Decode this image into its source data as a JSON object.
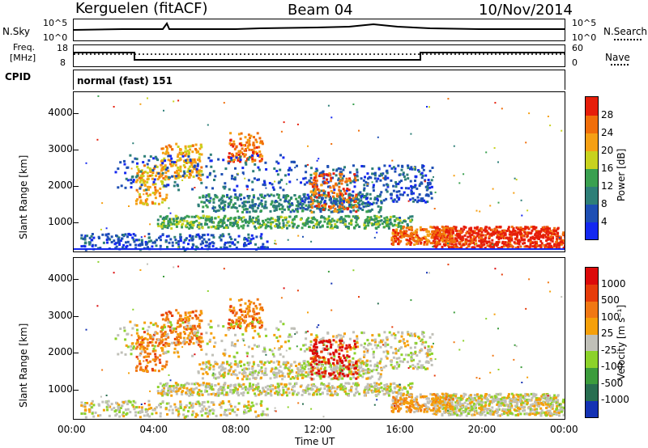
{
  "header": {
    "station": "Kerguelen (fitACF)",
    "beam": "Beam 04",
    "date": "10/Nov/2014"
  },
  "status_panels": {
    "nsky_label": "N.Sky",
    "nsky_ticks": [
      "10^5",
      "10^0"
    ],
    "nsearch_label": "N.Search",
    "nsearch_ticks": [
      "10^5",
      "10^0"
    ],
    "freq_label_1": "Freq.",
    "freq_label_2": "[MHz]",
    "freq_ticks": [
      "18",
      "8"
    ],
    "nave_label": "Nave",
    "nave_ticks": [
      "60",
      "0"
    ],
    "cpid_label": "CPID",
    "cpid_value": "normal (fast) 151"
  },
  "chart_data": [
    {
      "type": "heatmap",
      "name": "power",
      "ylabel": "Slant Range [km]",
      "xlabel": "",
      "yticks": [
        "1000",
        "2000",
        "3000",
        "4000"
      ],
      "ylim": [
        180,
        4600
      ],
      "colorbar": {
        "label": "Power [dB]",
        "ticks": [
          "4",
          "8",
          "12",
          "16",
          "20",
          "24",
          "28"
        ],
        "colors": [
          "#1428f0",
          "#1e4fb4",
          "#2e7f78",
          "#3aa050",
          "#c8d21e",
          "#f5a014",
          "#f06e0a",
          "#e61e0a"
        ]
      }
    },
    {
      "type": "heatmap",
      "name": "velocity",
      "ylabel": "Slant Range [km]",
      "xlabel": "Time UT",
      "yticks": [
        "1000",
        "2000",
        "3000",
        "4000"
      ],
      "xticks": [
        "00:00",
        "04:00",
        "08:00",
        "12:00",
        "16:00",
        "20:00",
        "00:00"
      ],
      "ylim": [
        180,
        4600
      ],
      "colorbar": {
        "label": "Velocity [m s⁻¹]",
        "ticks": [
          "1000",
          "500",
          "100",
          "25",
          "-25",
          "-100",
          "-500",
          "-1000"
        ],
        "colors": [
          "#1432b4",
          "#286e50",
          "#3c9c3c",
          "#8cd22a",
          "#c0c0b8",
          "#f5a00a",
          "#f07814",
          "#e63c0a",
          "#dc0a0a"
        ]
      }
    }
  ]
}
